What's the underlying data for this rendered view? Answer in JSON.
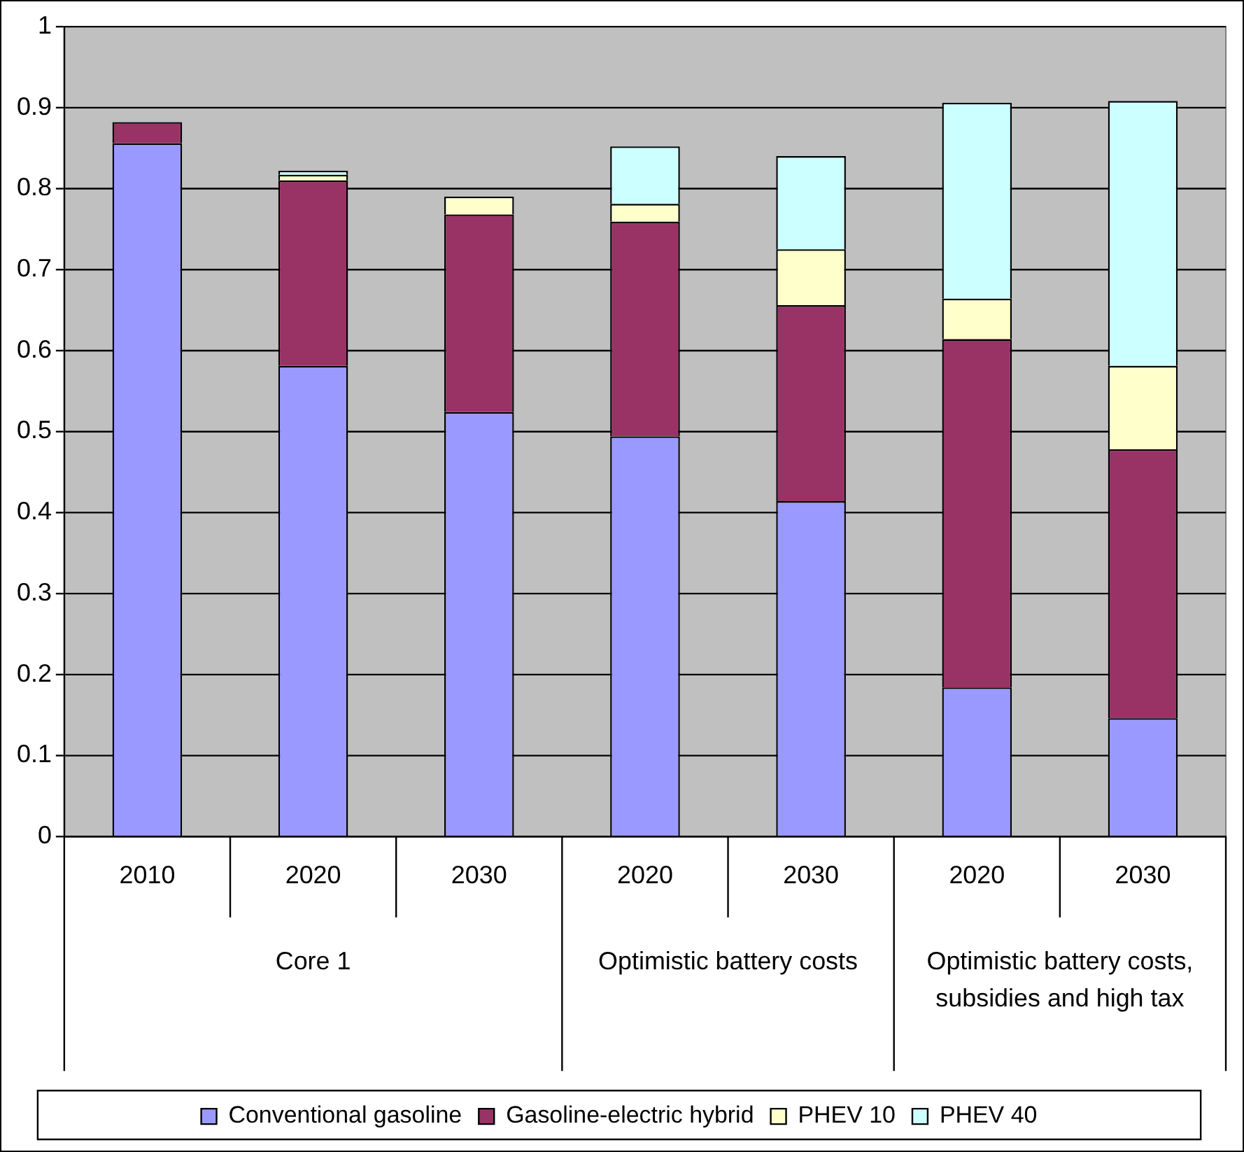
{
  "chart_data": {
    "type": "bar",
    "stacked": true,
    "categories": [
      "2010",
      "2020",
      "2030",
      "2020",
      "2030",
      "2020",
      "2030"
    ],
    "series": [
      {
        "name": "Conventional gasoline",
        "color": "#9999ff",
        "values": [
          0.856,
          0.581,
          0.524,
          0.494,
          0.414,
          0.184,
          0.146
        ]
      },
      {
        "name": "Gasoline-electric hybrid",
        "color": "#993366",
        "values": [
          0.026,
          0.229,
          0.244,
          0.265,
          0.242,
          0.43,
          0.332
        ]
      },
      {
        "name": "PHEV 10",
        "color": "#ffffcc",
        "values": [
          0,
          0.007,
          0.022,
          0.022,
          0.069,
          0.05,
          0.103
        ]
      },
      {
        "name": "PHEV 40",
        "color": "#ccffff",
        "values": [
          0,
          0.005,
          null,
          0.071,
          0.115,
          0.242,
          0.327
        ]
      }
    ],
    "ylim": [
      0,
      1
    ],
    "yticks": [
      0,
      0.1,
      0.2,
      0.3,
      0.4,
      0.5,
      0.6,
      0.7,
      0.8,
      0.9,
      1
    ],
    "grid": "y",
    "legend": "bottom",
    "annotations": [
      "Core 1",
      "Optimistic battery costs",
      "Optimistic battery costs, subsidies and high tax"
    ]
  }
}
